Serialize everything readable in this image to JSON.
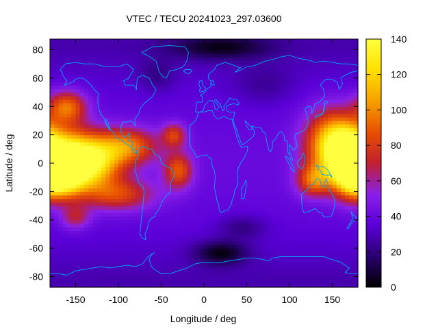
{
  "chart_data": {
    "type": "heatmap",
    "title": "VTEC / TECU 20241023_297.03600",
    "xlabel": "Longitude / deg",
    "ylabel": "Latitude / deg",
    "xlim": [
      -180,
      180
    ],
    "ylim": [
      -87.5,
      87.5
    ],
    "x_ticks": [
      -150,
      -100,
      -50,
      0,
      50,
      100,
      150
    ],
    "y_ticks": [
      -80,
      -60,
      -40,
      -20,
      0,
      20,
      40,
      60,
      80
    ],
    "colorbar": {
      "range": [
        0,
        140
      ],
      "ticks": [
        0,
        20,
        40,
        60,
        80,
        100,
        120,
        140
      ],
      "palette": [
        "#000000",
        "#2a0070",
        "#5a00d8",
        "#8a20e8",
        "#c02030",
        "#e85000",
        "#f7a000",
        "#ffe000",
        "#ffff40"
      ]
    },
    "coastline_color": "#00a8ff",
    "grid_resolution": {
      "dlon": 5,
      "dlat": 2.5
    },
    "features": {
      "background_vtec": 40,
      "polar_vtec": 28,
      "enhancements": [
        {
          "lon": -170,
          "lat": 5,
          "peak": 128,
          "sigma_lon": 30,
          "sigma_lat": 14
        },
        {
          "lon": -135,
          "lat": 0,
          "peak": 118,
          "sigma_lon": 26,
          "sigma_lat": 12
        },
        {
          "lon": -170,
          "lat": -10,
          "peak": 122,
          "sigma_lon": 18,
          "sigma_lat": 10
        },
        {
          "lon": -160,
          "lat": 40,
          "peak": 95,
          "sigma_lon": 16,
          "sigma_lat": 8
        },
        {
          "lon": -90,
          "lat": 12,
          "peak": 95,
          "sigma_lon": 25,
          "sigma_lat": 9
        },
        {
          "lon": -100,
          "lat": -22,
          "peak": 82,
          "sigma_lon": 30,
          "sigma_lat": 8
        },
        {
          "lon": -30,
          "lat": -5,
          "peak": 88,
          "sigma_lon": 12,
          "sigma_lat": 9
        },
        {
          "lon": -35,
          "lat": 20,
          "peak": 80,
          "sigma_lon": 10,
          "sigma_lat": 6
        },
        {
          "lon": -150,
          "lat": -38,
          "peak": 70,
          "sigma_lon": 12,
          "sigma_lat": 6
        },
        {
          "lon": 150,
          "lat": 15,
          "peak": 112,
          "sigma_lon": 22,
          "sigma_lat": 16
        },
        {
          "lon": 168,
          "lat": 0,
          "peak": 118,
          "sigma_lon": 14,
          "sigma_lat": 14
        },
        {
          "lon": 128,
          "lat": -12,
          "peak": 88,
          "sigma_lon": 14,
          "sigma_lat": 8
        }
      ],
      "depletions": [
        {
          "lon": 20,
          "lat": -63,
          "depth": 30,
          "sigma_lon": 22,
          "sigma_lat": 6
        },
        {
          "lon": 20,
          "lat": 82,
          "depth": 25,
          "sigma_lon": 40,
          "sigma_lat": 6
        },
        {
          "lon": 45,
          "lat": -45,
          "depth": 15,
          "sigma_lon": 20,
          "sigma_lat": 6
        },
        {
          "lon": -55,
          "lat": 62,
          "depth": 12,
          "sigma_lon": 15,
          "sigma_lat": 8
        },
        {
          "lon": 70,
          "lat": 55,
          "depth": 10,
          "sigma_lon": 25,
          "sigma_lat": 10
        }
      ]
    }
  }
}
